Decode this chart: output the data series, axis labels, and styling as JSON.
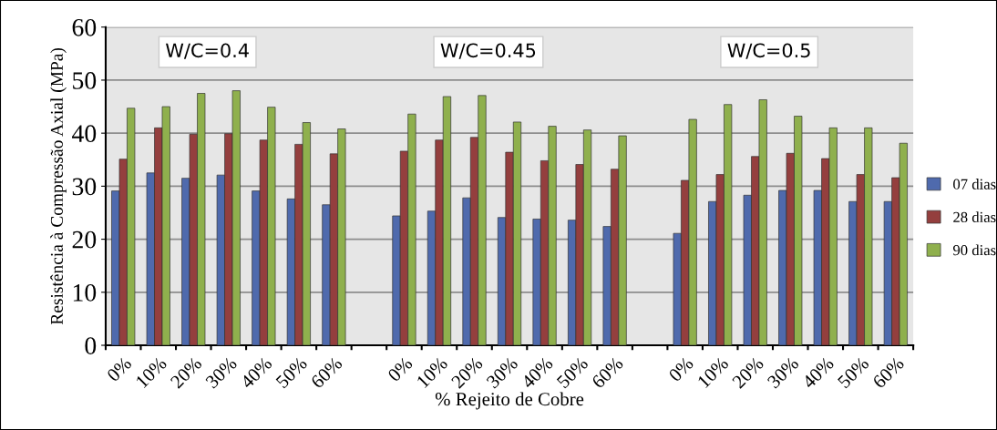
{
  "chart_data": {
    "type": "bar",
    "xlabel": "% Rejeito de Cobre",
    "ylabel": "Resistência à Compressão Axial (MPa)",
    "categories": [
      "0%",
      "10%",
      "20%",
      "30%",
      "40%",
      "50%",
      "60%",
      null,
      "0%",
      "10%",
      "20%",
      "30%",
      "40%",
      "50%",
      "60%",
      null,
      "0%",
      "10%",
      "20%",
      "30%",
      "40%",
      "50%",
      "60%"
    ],
    "series": [
      {
        "name": "07 dias",
        "color": "#4f6aad",
        "values": [
          29.1,
          32.5,
          31.5,
          32.1,
          29.1,
          27.6,
          26.5,
          null,
          24.4,
          25.3,
          27.8,
          24.1,
          23.8,
          23.6,
          22.4,
          null,
          21.1,
          27.1,
          28.3,
          29.2,
          29.2,
          27.1,
          27.1
        ]
      },
      {
        "name": "28 dias",
        "color": "#943f3e",
        "values": [
          35.1,
          41.0,
          39.8,
          39.9,
          38.7,
          37.9,
          36.1,
          null,
          36.6,
          38.7,
          39.2,
          36.4,
          34.8,
          34.1,
          33.2,
          null,
          31.1,
          32.2,
          35.6,
          36.2,
          35.2,
          32.2,
          31.6
        ]
      },
      {
        "name": "90 dias",
        "color": "#8fb04d",
        "values": [
          44.7,
          45.0,
          47.5,
          48.0,
          44.9,
          42.0,
          40.8,
          null,
          43.6,
          46.9,
          47.1,
          42.1,
          41.3,
          40.6,
          39.5,
          null,
          42.6,
          45.4,
          46.3,
          43.2,
          41.0,
          41.0,
          38.1
        ]
      }
    ],
    "annotations": [
      "W/C=0.4",
      "W/C=0.45",
      "W/C=0.5"
    ],
    "ylim": [
      0,
      60
    ],
    "yticks": [
      0,
      10,
      20,
      30,
      40,
      50,
      60
    ],
    "grid": "y",
    "legend": "right"
  }
}
